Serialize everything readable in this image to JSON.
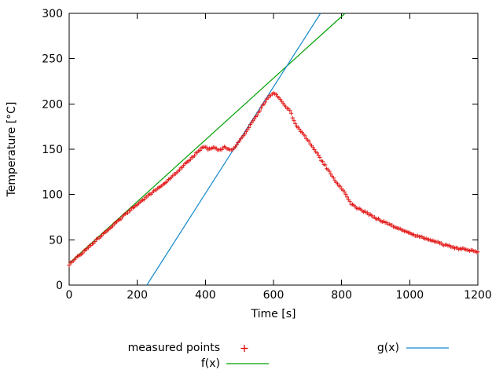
{
  "chart_data": {
    "type": "scatter",
    "title": "",
    "xlabel": "Time [s]",
    "ylabel": "Temperature [°C]",
    "xlim": [
      0,
      1200
    ],
    "ylim": [
      0,
      300
    ],
    "xticks": [
      0,
      200,
      400,
      600,
      800,
      1000,
      1200
    ],
    "yticks": [
      0,
      50,
      100,
      150,
      200,
      250,
      300
    ],
    "grid": false,
    "legend_position": "below-plot",
    "colors": {
      "measured": "#e00000",
      "f": "#00a000",
      "g": "#1489cc",
      "axis": "#000000",
      "background": "#ffffff"
    },
    "series": [
      {
        "name": "measured points",
        "type": "points",
        "marker": "plus",
        "color_key": "measured",
        "sample_step": 4,
        "noise_amplitude": 0.9,
        "points": [
          [
            0,
            23
          ],
          [
            15,
            28
          ],
          [
            30,
            33
          ],
          [
            45,
            38
          ],
          [
            60,
            43
          ],
          [
            75,
            48
          ],
          [
            90,
            53
          ],
          [
            105,
            58
          ],
          [
            120,
            63
          ],
          [
            135,
            68
          ],
          [
            150,
            73
          ],
          [
            165,
            78
          ],
          [
            180,
            83
          ],
          [
            195,
            87
          ],
          [
            210,
            92
          ],
          [
            225,
            97
          ],
          [
            240,
            101
          ],
          [
            255,
            105
          ],
          [
            270,
            109
          ],
          [
            285,
            113
          ],
          [
            300,
            119
          ],
          [
            315,
            124
          ],
          [
            330,
            130
          ],
          [
            345,
            135
          ],
          [
            360,
            141
          ],
          [
            375,
            146
          ],
          [
            390,
            152
          ],
          [
            395,
            153
          ],
          [
            400,
            152
          ],
          [
            408,
            150
          ],
          [
            416,
            151
          ],
          [
            424,
            152
          ],
          [
            432,
            150
          ],
          [
            440,
            149
          ],
          [
            448,
            150
          ],
          [
            456,
            152
          ],
          [
            464,
            151
          ],
          [
            472,
            149
          ],
          [
            480,
            150
          ],
          [
            488,
            153
          ],
          [
            496,
            157
          ],
          [
            504,
            161
          ],
          [
            512,
            165
          ],
          [
            520,
            170
          ],
          [
            528,
            174
          ],
          [
            536,
            179
          ],
          [
            544,
            184
          ],
          [
            552,
            188
          ],
          [
            560,
            193
          ],
          [
            568,
            198
          ],
          [
            576,
            203
          ],
          [
            584,
            207
          ],
          [
            592,
            210
          ],
          [
            600,
            212
          ],
          [
            606,
            211
          ],
          [
            612,
            209
          ],
          [
            618,
            206
          ],
          [
            624,
            203
          ],
          [
            630,
            200
          ],
          [
            636,
            197
          ],
          [
            642,
            195
          ],
          [
            648,
            192
          ],
          [
            652,
            189
          ],
          [
            656,
            185
          ],
          [
            660,
            181
          ],
          [
            665,
            177
          ],
          [
            670,
            174
          ],
          [
            676,
            172
          ],
          [
            682,
            169
          ],
          [
            690,
            165
          ],
          [
            700,
            160
          ],
          [
            710,
            155
          ],
          [
            720,
            149
          ],
          [
            730,
            144
          ],
          [
            740,
            138
          ],
          [
            750,
            133
          ],
          [
            760,
            127
          ],
          [
            770,
            122
          ],
          [
            780,
            116
          ],
          [
            790,
            111
          ],
          [
            800,
            107
          ],
          [
            806,
            103
          ],
          [
            812,
            100
          ],
          [
            818,
            96
          ],
          [
            824,
            92
          ],
          [
            830,
            89
          ],
          [
            838,
            87
          ],
          [
            846,
            85
          ],
          [
            856,
            83
          ],
          [
            866,
            81
          ],
          [
            876,
            79
          ],
          [
            886,
            77
          ],
          [
            896,
            75
          ],
          [
            906,
            73
          ],
          [
            916,
            71
          ],
          [
            926,
            70
          ],
          [
            936,
            68
          ],
          [
            946,
            66
          ],
          [
            956,
            64
          ],
          [
            966,
            63
          ],
          [
            976,
            61
          ],
          [
            986,
            60
          ],
          [
            996,
            58
          ],
          [
            1006,
            57
          ],
          [
            1016,
            55
          ],
          [
            1026,
            54
          ],
          [
            1036,
            53
          ],
          [
            1046,
            51
          ],
          [
            1056,
            50
          ],
          [
            1066,
            49
          ],
          [
            1076,
            48
          ],
          [
            1086,
            47
          ],
          [
            1096,
            45
          ],
          [
            1106,
            44
          ],
          [
            1116,
            43
          ],
          [
            1126,
            42
          ],
          [
            1136,
            41
          ],
          [
            1146,
            40
          ],
          [
            1156,
            40
          ],
          [
            1166,
            39
          ],
          [
            1176,
            38
          ],
          [
            1186,
            38
          ],
          [
            1196,
            37
          ],
          [
            1200,
            37
          ]
        ]
      },
      {
        "name": "f(x)",
        "type": "line",
        "color_key": "f",
        "points": [
          [
            0,
            24
          ],
          [
            810,
            300
          ]
        ]
      },
      {
        "name": "g(x)",
        "type": "line",
        "color_key": "g",
        "points": [
          [
            228,
            0
          ],
          [
            738,
            300
          ]
        ]
      }
    ],
    "legend": [
      {
        "label": "measured points",
        "series": "measured"
      },
      {
        "label": "f(x)",
        "series": "f"
      },
      {
        "label": "g(x)",
        "series": "g"
      }
    ]
  }
}
